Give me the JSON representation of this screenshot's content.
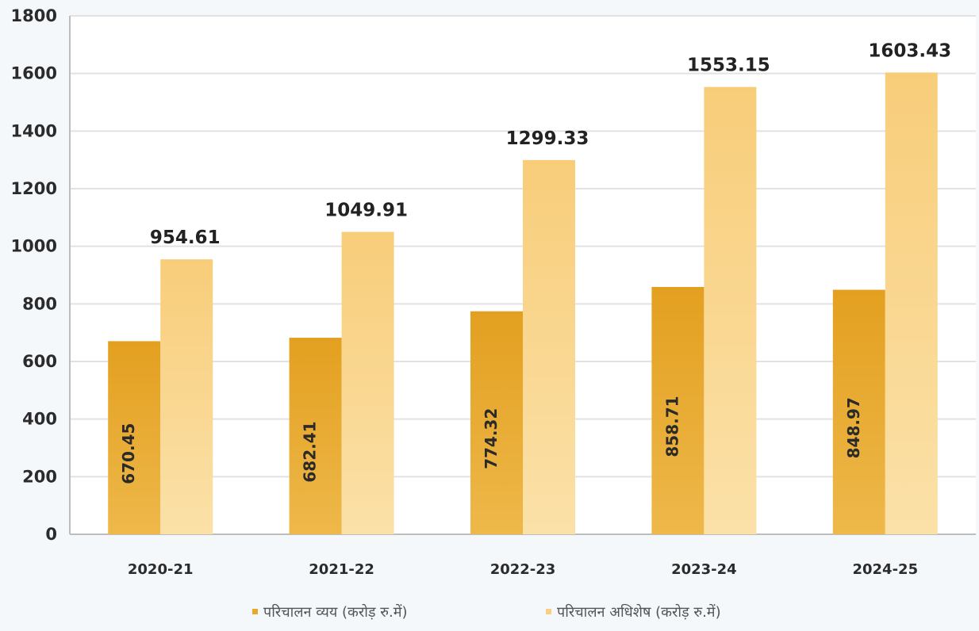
{
  "chart_data": {
    "type": "bar",
    "title": "",
    "xlabel": "",
    "ylabel": "",
    "categories": [
      "2020-21",
      "2021-22",
      "2022-23",
      "2023-24",
      "2024-25"
    ],
    "series": [
      {
        "name": "परिचालन व्यय (करोड़ रु.में)",
        "values": [
          670.45,
          682.41,
          774.32,
          858.71,
          848.97
        ],
        "color": "#e8a92a"
      },
      {
        "name": "परिचालन अधिशेष (करोड़ रु.में)",
        "values": [
          954.61,
          1049.91,
          1299.33,
          1553.15,
          1603.43
        ],
        "color": "#f8cf7e"
      }
    ],
    "ylim": [
      0,
      1800
    ],
    "yticks": [
      0,
      200,
      400,
      600,
      800,
      1000,
      1200,
      1400,
      1600,
      1800
    ],
    "grid": true,
    "legend": "bottom",
    "value_labels": {
      "series_0": [
        "670.45",
        "682.41",
        "774.32",
        "858.71",
        "848.97"
      ],
      "series_1": [
        "954.61",
        "1049.91",
        "1299.33",
        "1553.15",
        "1603.43"
      ]
    }
  }
}
